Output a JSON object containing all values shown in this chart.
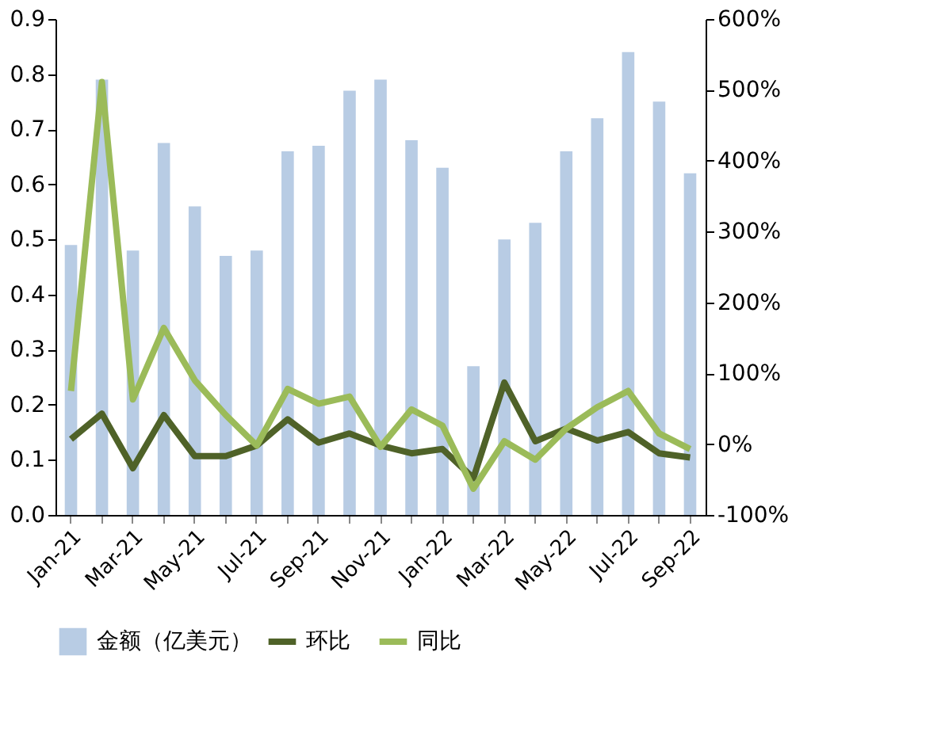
{
  "chart_data": {
    "type": "bar",
    "categories": [
      "Jan-21",
      null,
      "Mar-21",
      null,
      "May-21",
      null,
      "Jul-21",
      null,
      "Sep-21",
      null,
      "Nov-21",
      null,
      "Jan-22",
      null,
      "Mar-22",
      null,
      "May-22",
      null,
      "Jul-22",
      null,
      "Sep-22"
    ],
    "series": [
      {
        "name": "金额（亿美元）",
        "color": "#b8cce4",
        "values": [
          0.49,
          0.79,
          0.48,
          0.675,
          0.56,
          0.47,
          0.48,
          0.66,
          0.67,
          0.77,
          0.79,
          0.68,
          0.63,
          0.27,
          0.5,
          0.53,
          0.66,
          0.72,
          0.84,
          0.75,
          0.62
        ]
      },
      {
        "name": "环比",
        "type": "line",
        "axis": "y2",
        "color": "#4f6228",
        "values": [
          7,
          43,
          -34,
          41,
          -17,
          -17,
          -2,
          35,
          2,
          15,
          -2,
          -13,
          -7,
          -48,
          87,
          4,
          22,
          5,
          17,
          -13,
          -19
        ]
      },
      {
        "name": "同比",
        "type": "line",
        "axis": "y2",
        "color": "#9bbb59",
        "values": [
          75,
          511,
          63,
          164,
          90,
          41,
          -2,
          78,
          57,
          67,
          -4,
          49,
          26,
          -63,
          4,
          -22,
          22,
          52,
          75,
          15,
          -7
        ]
      }
    ],
    "ylim": [
      0,
      0.9
    ],
    "yticks": [
      {
        "value": 0,
        "label": "0.0"
      },
      0.1,
      0.2,
      0.3,
      0.4,
      0.5,
      0.6,
      0.7,
      0.8,
      0.9
    ],
    "y2lim": [
      -100,
      600
    ],
    "y2ticks": [
      {
        "value": -100,
        "label": "-100%"
      },
      {
        "value": 0,
        "label": "0%"
      },
      {
        "value": 100,
        "label": "100%"
      },
      {
        "value": 200,
        "label": "200%"
      },
      {
        "value": 300,
        "label": "300%"
      },
      {
        "value": 400,
        "label": "400%"
      },
      {
        "value": 500,
        "label": "500%"
      },
      {
        "value": 600,
        "label": "600%"
      }
    ],
    "grid": false,
    "legend": "bottom"
  }
}
